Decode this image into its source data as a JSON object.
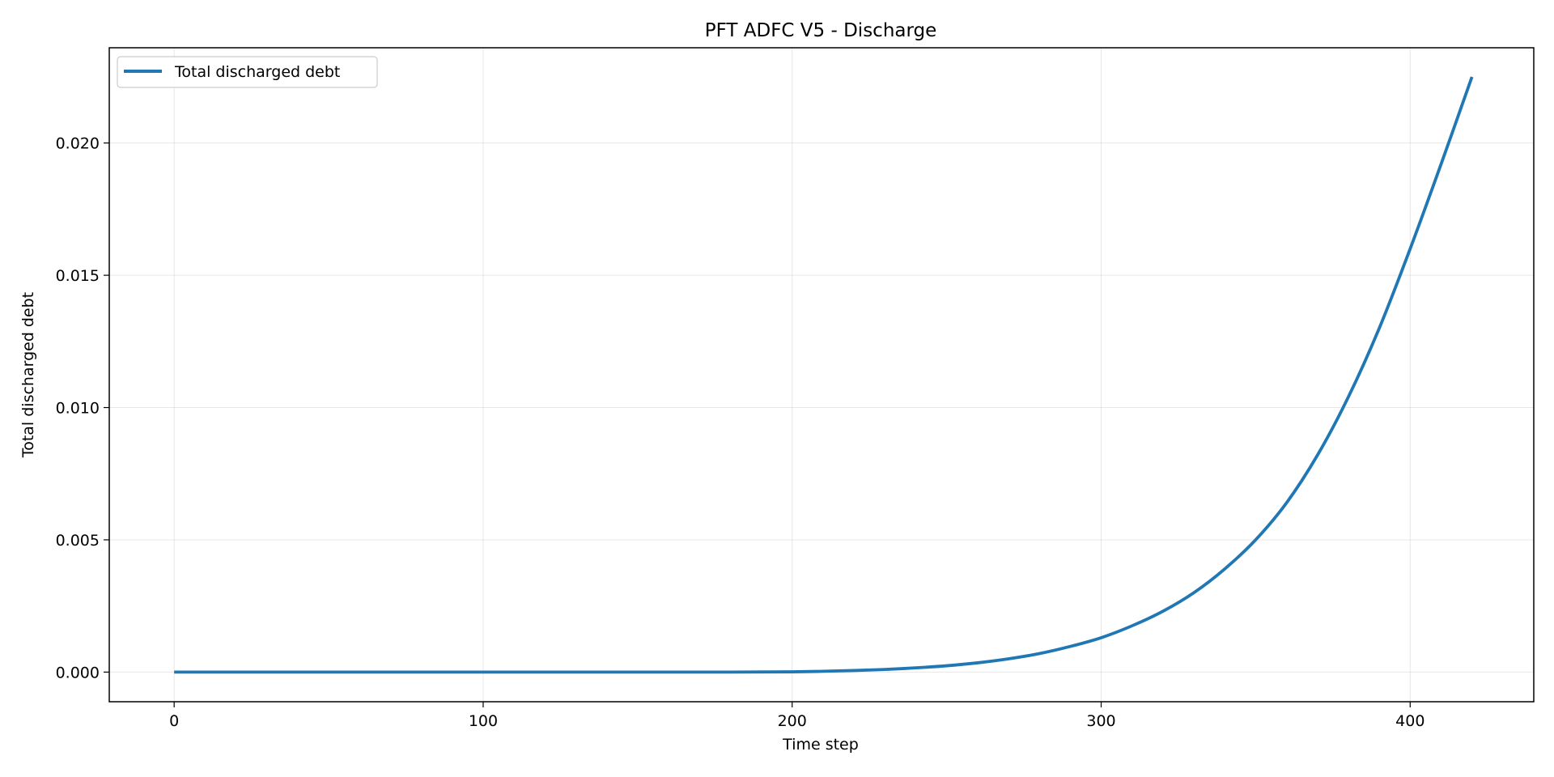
{
  "chart_data": {
    "type": "line",
    "title": "PFT ADFC V5 - Discharge",
    "xlabel": "Time step",
    "ylabel": "Total discharged debt",
    "xlim": [
      -21,
      440
    ],
    "ylim": [
      -0.00112,
      0.0236
    ],
    "xticks": [
      0,
      100,
      200,
      300,
      400
    ],
    "xtick_labels": [
      "0",
      "100",
      "200",
      "300",
      "400"
    ],
    "yticks": [
      0.0,
      0.005,
      0.01,
      0.015,
      0.02
    ],
    "ytick_labels": [
      "0.000",
      "0.005",
      "0.010",
      "0.015",
      "0.020"
    ],
    "grid": true,
    "legend_position": "upper left",
    "series": [
      {
        "name": "Total discharged debt",
        "color": "#1f77b4",
        "x": [
          0,
          50,
          100,
          150,
          180,
          200,
          210,
          220,
          230,
          240,
          250,
          260,
          270,
          280,
          290,
          300,
          310,
          320,
          330,
          340,
          350,
          360,
          370,
          380,
          390,
          400,
          410,
          420
        ],
        "y": [
          0.0,
          0.0,
          0.0,
          0.0,
          0.0,
          1e-05,
          3e-05,
          6e-05,
          0.0001,
          0.00016,
          0.00024,
          0.00035,
          0.0005,
          0.0007,
          0.00097,
          0.0013,
          0.00175,
          0.0023,
          0.003,
          0.0039,
          0.005,
          0.0064,
          0.0082,
          0.0104,
          0.013,
          0.016,
          0.0192,
          0.0225
        ]
      }
    ]
  }
}
